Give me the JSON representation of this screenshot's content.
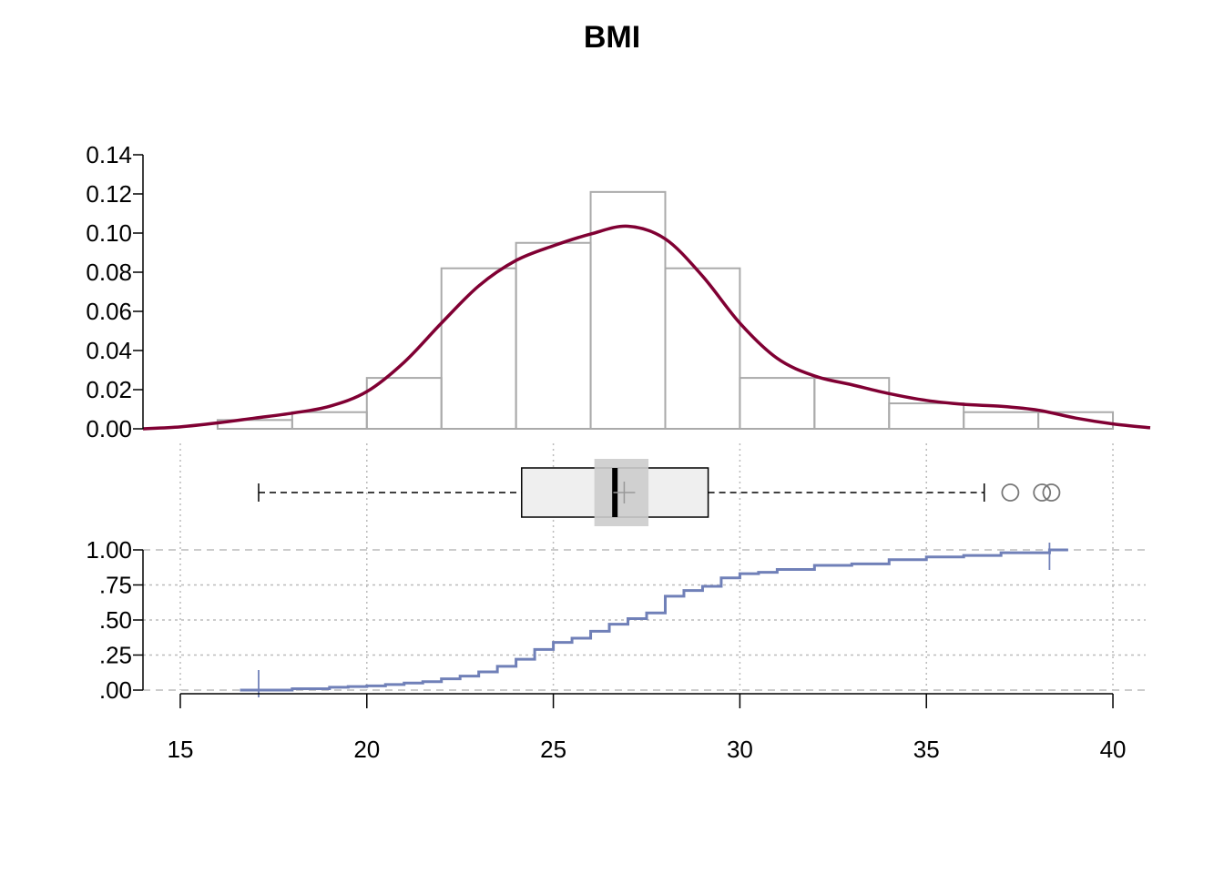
{
  "chart_data": {
    "type": "histogram+boxplot+ecdf",
    "title": "BMI",
    "xlim": [
      14,
      41
    ],
    "x_ticks": [
      15,
      20,
      25,
      30,
      35,
      40
    ],
    "x_tick_labels": [
      "15",
      "20",
      "25",
      "30",
      "35",
      "40"
    ],
    "histogram": {
      "ylim": [
        0,
        0.14
      ],
      "y_ticks": [
        0,
        0.02,
        0.04,
        0.06,
        0.08,
        0.1,
        0.12,
        0.14
      ],
      "y_tick_labels": [
        "0.00",
        "0.02",
        "0.04",
        "0.06",
        "0.08",
        "0.10",
        "0.12",
        "0.14"
      ],
      "bin_edges": [
        16,
        18,
        20,
        22,
        24,
        26,
        28,
        30,
        32,
        34,
        36,
        38,
        40
      ],
      "densities": [
        0.0045,
        0.0085,
        0.026,
        0.082,
        0.095,
        0.121,
        0.082,
        0.026,
        0.026,
        0.013,
        0.0085,
        0.0085
      ],
      "bar_color": "#aaaaaa",
      "density_curve": {
        "color": "#800033",
        "x": [
          14,
          15,
          16,
          17,
          18,
          19,
          20,
          21,
          22,
          23,
          24,
          25,
          26,
          27,
          28,
          29,
          30,
          31,
          32,
          33,
          34,
          35,
          36,
          37,
          38,
          39,
          40,
          41
        ],
        "y": [
          0.0,
          0.001,
          0.003,
          0.0055,
          0.008,
          0.0115,
          0.019,
          0.034,
          0.054,
          0.073,
          0.086,
          0.0935,
          0.0995,
          0.1035,
          0.097,
          0.078,
          0.054,
          0.036,
          0.027,
          0.0225,
          0.018,
          0.0145,
          0.0125,
          0.0115,
          0.0095,
          0.0055,
          0.0025,
          0.0005
        ]
      }
    },
    "boxplot": {
      "whisker_low": 17.1,
      "q1": 24.15,
      "median": 26.65,
      "q3": 29.15,
      "whisker_high": 36.55,
      "mean": 26.9,
      "median_ci": [
        26.1,
        27.55
      ],
      "outliers": [
        37.25,
        38.1,
        38.35
      ],
      "box_fill": "#efefef",
      "ci_fill": "#cccccc"
    },
    "ecdf": {
      "ylim": [
        0,
        1
      ],
      "y_ticks": [
        0,
        0.25,
        0.5,
        0.75,
        1.0
      ],
      "y_tick_labels": [
        ".00",
        ".25",
        ".50",
        ".75",
        "1.00"
      ],
      "color": "#7080b8",
      "x": [
        17.1,
        18,
        19,
        19.5,
        20,
        20.5,
        21,
        21.5,
        22,
        22.5,
        23,
        23.5,
        24,
        24.5,
        25,
        25.5,
        26,
        26.5,
        27,
        27.5,
        28,
        28.5,
        29,
        29.5,
        30,
        30.5,
        31,
        32,
        33,
        34,
        35,
        36,
        37,
        38.3
      ],
      "y": [
        0.0,
        0.01,
        0.02,
        0.025,
        0.03,
        0.04,
        0.05,
        0.06,
        0.08,
        0.1,
        0.13,
        0.17,
        0.22,
        0.29,
        0.34,
        0.37,
        0.42,
        0.47,
        0.51,
        0.55,
        0.67,
        0.71,
        0.74,
        0.8,
        0.83,
        0.84,
        0.86,
        0.89,
        0.9,
        0.93,
        0.95,
        0.96,
        0.98,
        1.0
      ]
    }
  }
}
